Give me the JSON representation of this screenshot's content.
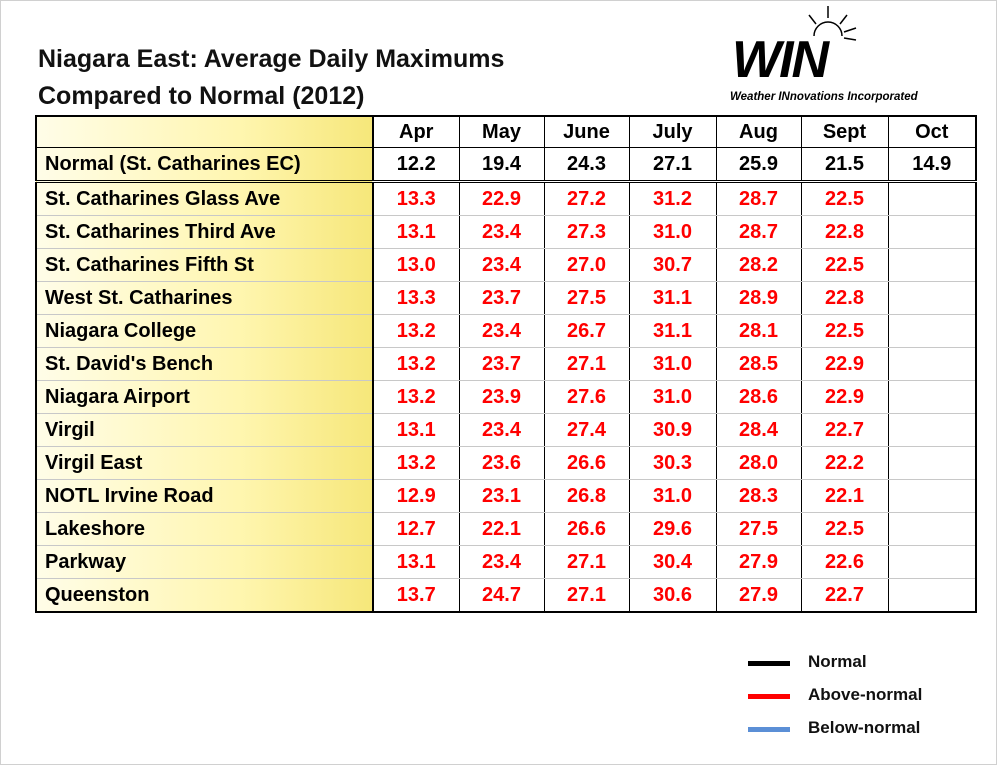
{
  "header": {
    "title_lines": [
      "Niagara East: Average Daily Maximums",
      "Compared to Normal (2012)"
    ]
  },
  "logo": {
    "name": "WIN",
    "tagline": "Weather INnovations Incorporated"
  },
  "table": {
    "columns": [
      "Apr",
      "May",
      "June",
      "July",
      "Aug",
      "Sept",
      "Oct"
    ],
    "normal": {
      "label": "Normal (St. Catharines EC)",
      "values": [
        "12.2",
        "19.4",
        "24.3",
        "27.1",
        "25.9",
        "21.5",
        "14.9"
      ]
    },
    "rows": [
      {
        "label": "St. Catharines Glass Ave",
        "values": [
          "13.3",
          "22.9",
          "27.2",
          "31.2",
          "28.7",
          "22.5"
        ]
      },
      {
        "label": "St. Catharines Third Ave",
        "values": [
          "13.1",
          "23.4",
          "27.3",
          "31.0",
          "28.7",
          "22.8"
        ]
      },
      {
        "label": "St. Catharines Fifth St",
        "values": [
          "13.0",
          "23.4",
          "27.0",
          "30.7",
          "28.2",
          "22.5"
        ]
      },
      {
        "label": "West St. Catharines",
        "values": [
          "13.3",
          "23.7",
          "27.5",
          "31.1",
          "28.9",
          "22.8"
        ]
      },
      {
        "label": "Niagara College",
        "values": [
          "13.2",
          "23.4",
          "26.7",
          "31.1",
          "28.1",
          "22.5"
        ]
      },
      {
        "label": "St. David's Bench",
        "values": [
          "13.2",
          "23.7",
          "27.1",
          "31.0",
          "28.5",
          "22.9"
        ]
      },
      {
        "label": "Niagara Airport",
        "values": [
          "13.2",
          "23.9",
          "27.6",
          "31.0",
          "28.6",
          "22.9"
        ]
      },
      {
        "label": "Virgil",
        "values": [
          "13.1",
          "23.4",
          "27.4",
          "30.9",
          "28.4",
          "22.7"
        ]
      },
      {
        "label": "Virgil East",
        "values": [
          "13.2",
          "23.6",
          "26.6",
          "30.3",
          "28.0",
          "22.2"
        ]
      },
      {
        "label": "NOTL Irvine Road",
        "values": [
          "12.9",
          "23.1",
          "26.8",
          "31.0",
          "28.3",
          "22.1"
        ]
      },
      {
        "label": "Lakeshore",
        "values": [
          "12.7",
          "22.1",
          "26.6",
          "29.6",
          "27.5",
          "22.5"
        ]
      },
      {
        "label": "Parkway",
        "values": [
          "13.1",
          "23.4",
          "27.1",
          "30.4",
          "27.9",
          "22.6"
        ]
      },
      {
        "label": "Queenston",
        "values": [
          "13.7",
          "24.7",
          "27.1",
          "30.6",
          "27.9",
          "22.7"
        ]
      }
    ]
  },
  "legend": [
    {
      "name": "Normal",
      "color": "#000000"
    },
    {
      "name": "Above-normal",
      "color": "#ff0000"
    },
    {
      "name": "Below-normal",
      "color": "#5b8fd6"
    }
  ]
}
